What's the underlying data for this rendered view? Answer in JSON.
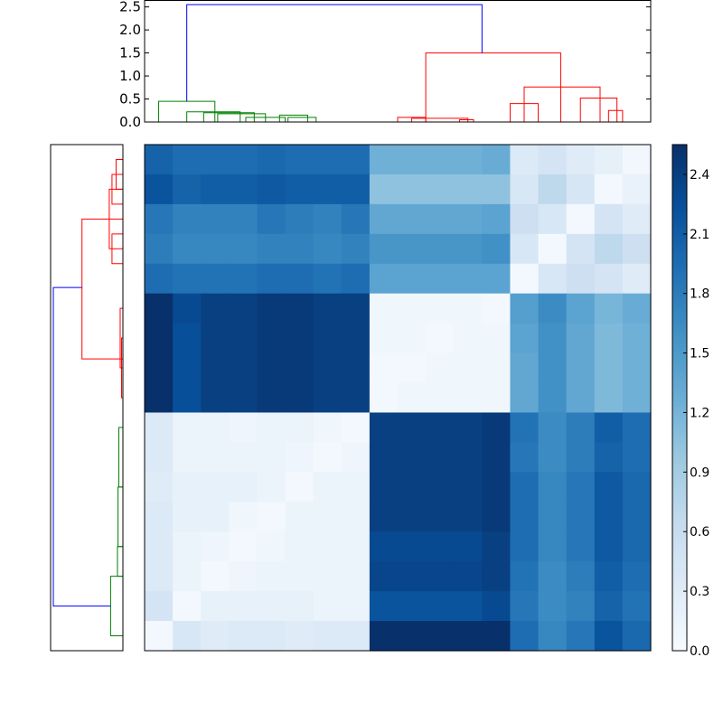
{
  "chart_data": {
    "type": "heatmap",
    "title": "",
    "xlabel": "",
    "ylabel": "",
    "colormap": "Blues",
    "value_range": [
      0.0,
      2.55
    ],
    "colorbar": {
      "ticks": [
        0.0,
        0.3,
        0.6,
        0.9,
        1.2,
        1.5,
        1.8,
        2.1,
        2.4
      ],
      "tick_labels": [
        "0.0",
        "0.3",
        "0.6",
        "0.9",
        "1.2",
        "1.5",
        "1.8",
        "2.1",
        "2.4"
      ]
    },
    "matrix": [
      [
        2.05,
        1.95,
        1.95,
        1.95,
        2.0,
        1.95,
        1.95,
        1.95,
        1.25,
        1.25,
        1.25,
        1.25,
        1.3,
        0.35,
        0.45,
        0.3,
        0.22,
        0.08
      ],
      [
        2.2,
        2.05,
        2.1,
        2.1,
        2.15,
        2.1,
        2.1,
        2.1,
        1.05,
        1.05,
        1.05,
        1.05,
        1.05,
        0.4,
        0.7,
        0.42,
        0.06,
        0.18
      ],
      [
        1.85,
        1.75,
        1.75,
        1.75,
        1.85,
        1.8,
        1.75,
        1.85,
        1.35,
        1.35,
        1.35,
        1.35,
        1.4,
        0.55,
        0.4,
        0.05,
        0.45,
        0.3
      ],
      [
        1.8,
        1.7,
        1.7,
        1.7,
        1.75,
        1.75,
        1.7,
        1.75,
        1.55,
        1.55,
        1.55,
        1.55,
        1.6,
        0.4,
        0.05,
        0.45,
        0.7,
        0.55
      ],
      [
        1.95,
        1.9,
        1.9,
        1.9,
        1.95,
        1.95,
        1.9,
        1.95,
        1.4,
        1.4,
        1.4,
        1.4,
        1.4,
        0.05,
        0.4,
        0.55,
        0.45,
        0.3
      ],
      [
        2.55,
        2.3,
        2.4,
        2.4,
        2.45,
        2.45,
        2.4,
        2.4,
        0.1,
        0.1,
        0.1,
        0.1,
        0.05,
        1.45,
        1.65,
        1.4,
        1.2,
        1.3
      ],
      [
        2.55,
        2.25,
        2.4,
        2.4,
        2.45,
        2.45,
        2.4,
        2.4,
        0.1,
        0.1,
        0.05,
        0.1,
        0.1,
        1.4,
        1.6,
        1.35,
        1.15,
        1.25
      ],
      [
        2.55,
        2.25,
        2.4,
        2.4,
        2.45,
        2.45,
        2.4,
        2.4,
        0.05,
        0.05,
        0.1,
        0.1,
        0.1,
        1.35,
        1.6,
        1.35,
        1.15,
        1.25
      ],
      [
        2.55,
        2.25,
        2.4,
        2.4,
        2.45,
        2.45,
        2.4,
        2.4,
        0.05,
        0.1,
        0.1,
        0.1,
        0.1,
        1.35,
        1.6,
        1.35,
        1.15,
        1.25
      ],
      [
        0.35,
        0.15,
        0.15,
        0.12,
        0.15,
        0.15,
        0.1,
        0.05,
        2.4,
        2.4,
        2.4,
        2.4,
        2.45,
        1.9,
        1.65,
        1.8,
        2.1,
        1.95
      ],
      [
        0.35,
        0.15,
        0.15,
        0.15,
        0.15,
        0.12,
        0.05,
        0.12,
        2.4,
        2.4,
        2.4,
        2.4,
        2.45,
        1.85,
        1.65,
        1.8,
        2.05,
        1.95
      ],
      [
        0.3,
        0.2,
        0.2,
        0.2,
        0.15,
        0.05,
        0.15,
        0.15,
        2.4,
        2.4,
        2.4,
        2.4,
        2.45,
        1.95,
        1.7,
        1.85,
        2.15,
        2.0
      ],
      [
        0.35,
        0.2,
        0.2,
        0.1,
        0.05,
        0.15,
        0.15,
        0.15,
        2.4,
        2.4,
        2.4,
        2.4,
        2.45,
        1.95,
        1.7,
        1.85,
        2.15,
        2.0
      ],
      [
        0.35,
        0.15,
        0.12,
        0.05,
        0.1,
        0.15,
        0.15,
        0.15,
        2.3,
        2.3,
        2.3,
        2.3,
        2.4,
        1.95,
        1.7,
        1.85,
        2.15,
        2.0
      ],
      [
        0.35,
        0.15,
        0.05,
        0.12,
        0.15,
        0.15,
        0.15,
        0.15,
        2.35,
        2.35,
        2.35,
        2.35,
        2.4,
        1.9,
        1.65,
        1.8,
        2.1,
        1.95
      ],
      [
        0.45,
        0.05,
        0.2,
        0.2,
        0.2,
        0.2,
        0.15,
        0.15,
        2.2,
        2.2,
        2.2,
        2.2,
        2.3,
        1.85,
        1.65,
        1.75,
        2.05,
        1.9
      ],
      [
        0.05,
        0.4,
        0.3,
        0.35,
        0.35,
        0.3,
        0.35,
        0.35,
        2.55,
        2.55,
        2.55,
        2.55,
        2.6,
        1.95,
        1.7,
        1.85,
        2.2,
        2.0
      ]
    ],
    "top_dendrogram": {
      "y_axis": {
        "ylim": [
          0,
          2.65
        ],
        "ticks": [
          0.0,
          0.5,
          1.0,
          1.5,
          2.0,
          2.5
        ],
        "tick_labels": [
          "0.0",
          "0.5",
          "1.0",
          "1.5",
          "2.0",
          "2.5"
        ]
      },
      "xlim": [
        0,
        18
      ],
      "links": [
        {
          "x": [
            5.1,
            5.5,
            6.1
          ],
          "h": [
            0.0,
            0.1,
            0.0
          ],
          "color": "#008000"
        },
        {
          "x": [
            4.8,
            5.3,
            5.8
          ],
          "h": [
            0.0,
            0.15,
            0.0
          ],
          "color": "#008000"
        },
        {
          "x": [
            3.6,
            4.3,
            5.0
          ],
          "h": [
            0.0,
            0.1,
            0.0
          ],
          "color": "#008000"
        },
        {
          "x": [
            2.6,
            3.5,
            4.3
          ],
          "h": [
            0.0,
            0.18,
            0.0
          ],
          "color": "#008000"
        },
        {
          "x": [
            2.1,
            3.0,
            3.9
          ],
          "h": [
            0.0,
            0.2,
            0.0
          ],
          "color": "#008000"
        },
        {
          "x": [
            1.5,
            2.5,
            3.4
          ],
          "h": [
            0.0,
            0.22,
            0.0
          ],
          "color": "#008000"
        },
        {
          "x": [
            0.5,
            1.5,
            2.5
          ],
          "h": [
            0.0,
            0.45,
            0.0
          ],
          "color": "#008000"
        },
        {
          "x": [
            11.2,
            11.7,
            11.7
          ],
          "h": [
            0.0,
            0.05,
            0.0
          ],
          "color": "#ff0000"
        },
        {
          "x": [
            9.5,
            10.5,
            11.5
          ],
          "h": [
            0.0,
            0.08,
            0.0
          ],
          "color": "#ff0000"
        },
        {
          "x": [
            9.0,
            9.5,
            10.0
          ],
          "h": [
            0.0,
            0.1,
            0.0
          ],
          "color": "#ff0000"
        },
        {
          "x": [
            13.0,
            13.5,
            14.0
          ],
          "h": [
            0.0,
            0.4,
            0.0
          ],
          "color": "#ff0000"
        },
        {
          "x": [
            16.5,
            16.8,
            17.0
          ],
          "h": [
            0.0,
            0.25,
            0.0
          ],
          "color": "#ff0000"
        },
        {
          "x": [
            15.5,
            16.2,
            16.8
          ],
          "h": [
            0.0,
            0.52,
            0.0
          ],
          "color": "#ff0000"
        },
        {
          "x": [
            13.5,
            14.8,
            16.2
          ],
          "h": [
            0.0,
            0.76,
            0.0
          ],
          "color": "#ff0000"
        },
        {
          "x": [
            10.0,
            12.0,
            14.8
          ],
          "h": [
            0.0,
            1.5,
            0.0
          ],
          "color": "#ff0000"
        },
        {
          "x": [
            1.5,
            6.0,
            12.0
          ],
          "h": [
            0.45,
            2.55,
            1.5
          ],
          "color": "#0000ff"
        }
      ]
    },
    "left_dendrogram": {
      "xlim": [
        2.65,
        0
      ],
      "ylim": [
        0,
        17
      ],
      "links": [
        {
          "y": [
            0.5,
            1.0,
            1.5
          ],
          "h": [
            0.0,
            0.25,
            0.0
          ],
          "color": "#ff0000"
        },
        {
          "y": [
            1.0,
            1.5,
            2.0
          ],
          "h": [
            0.0,
            0.4,
            0.0
          ],
          "color": "#ff0000"
        },
        {
          "y": [
            3.0,
            3.5,
            4.0
          ],
          "h": [
            0.0,
            0.4,
            0.0
          ],
          "color": "#ff0000"
        },
        {
          "y": [
            1.5,
            2.5,
            3.5
          ],
          "h": [
            0.0,
            0.5,
            0.0
          ],
          "color": "#ff0000"
        },
        {
          "y": [
            5.5,
            6.5,
            7.5
          ],
          "h": [
            0.0,
            0.1,
            0.0
          ],
          "color": "#ff0000"
        },
        {
          "y": [
            6.5,
            7.2,
            8.5
          ],
          "h": [
            0.0,
            0.05,
            0.0
          ],
          "color": "#ff0000"
        },
        {
          "y": [
            2.5,
            4.8,
            7.2
          ],
          "h": [
            0.0,
            1.5,
            0.0
          ],
          "color": "#ff0000"
        },
        {
          "y": [
            9.5,
            10.5,
            11.5
          ],
          "h": [
            0.0,
            0.15,
            0.0
          ],
          "color": "#008000"
        },
        {
          "y": [
            11.5,
            12.5,
            13.5
          ],
          "h": [
            0.0,
            0.18,
            0.0
          ],
          "color": "#008000"
        },
        {
          "y": [
            13.5,
            14.0,
            14.5
          ],
          "h": [
            0.0,
            0.2,
            0.0
          ],
          "color": "#008000"
        },
        {
          "y": [
            14.5,
            15.5,
            16.5
          ],
          "h": [
            0.0,
            0.45,
            0.0
          ],
          "color": "#008000"
        },
        {
          "y": [
            4.8,
            9.0,
            15.5
          ],
          "h": [
            1.5,
            2.55,
            0.45
          ],
          "color": "#0000ff"
        }
      ]
    }
  }
}
